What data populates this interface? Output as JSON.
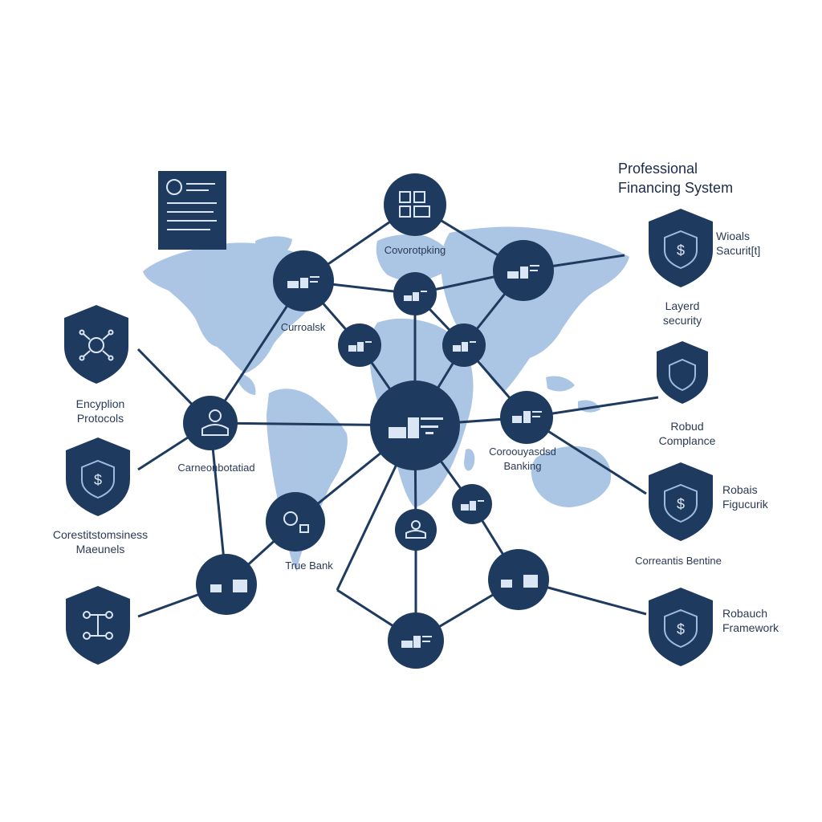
{
  "title": {
    "line1": "Professional",
    "line2": "Financing System"
  },
  "colors": {
    "navy": "#1e3a5f",
    "map": "#8fb0d8",
    "line": "#1e3a5f",
    "icon_light": "#c9d8ee"
  },
  "labels": {
    "top_node": "Covorotpking",
    "left_upper": "Curroalsk",
    "left_mid": "Carneonbotatiad",
    "true_bank": "True Bank",
    "center_right": "Coroouyasdsd",
    "center_right_2": "Banking",
    "encryption_1": "Encyplion",
    "encryption_2": "Protocols",
    "cors_1": "Corestitstomsiness",
    "cors_2": "Maeunels",
    "wioals_1": "Wioals",
    "wioals_2": "Sacurit[t]",
    "layered_1": "Layerd",
    "layered_2": "security",
    "robud_1": "Robud",
    "robud_2": "Complance",
    "robais_1": "Robais",
    "robais_2": "Figucurik",
    "cornerantis": "Correantis Bentine",
    "robauch_1": "Robauch",
    "robauch_2": "Framework"
  },
  "icons": {
    "document": "document-icon",
    "shield_dollar": "shield-dollar-icon",
    "shield_network": "shield-network-icon",
    "shield_plain": "shield-icon",
    "node_bank": "bank-node-icon",
    "node_user": "user-node-icon"
  }
}
